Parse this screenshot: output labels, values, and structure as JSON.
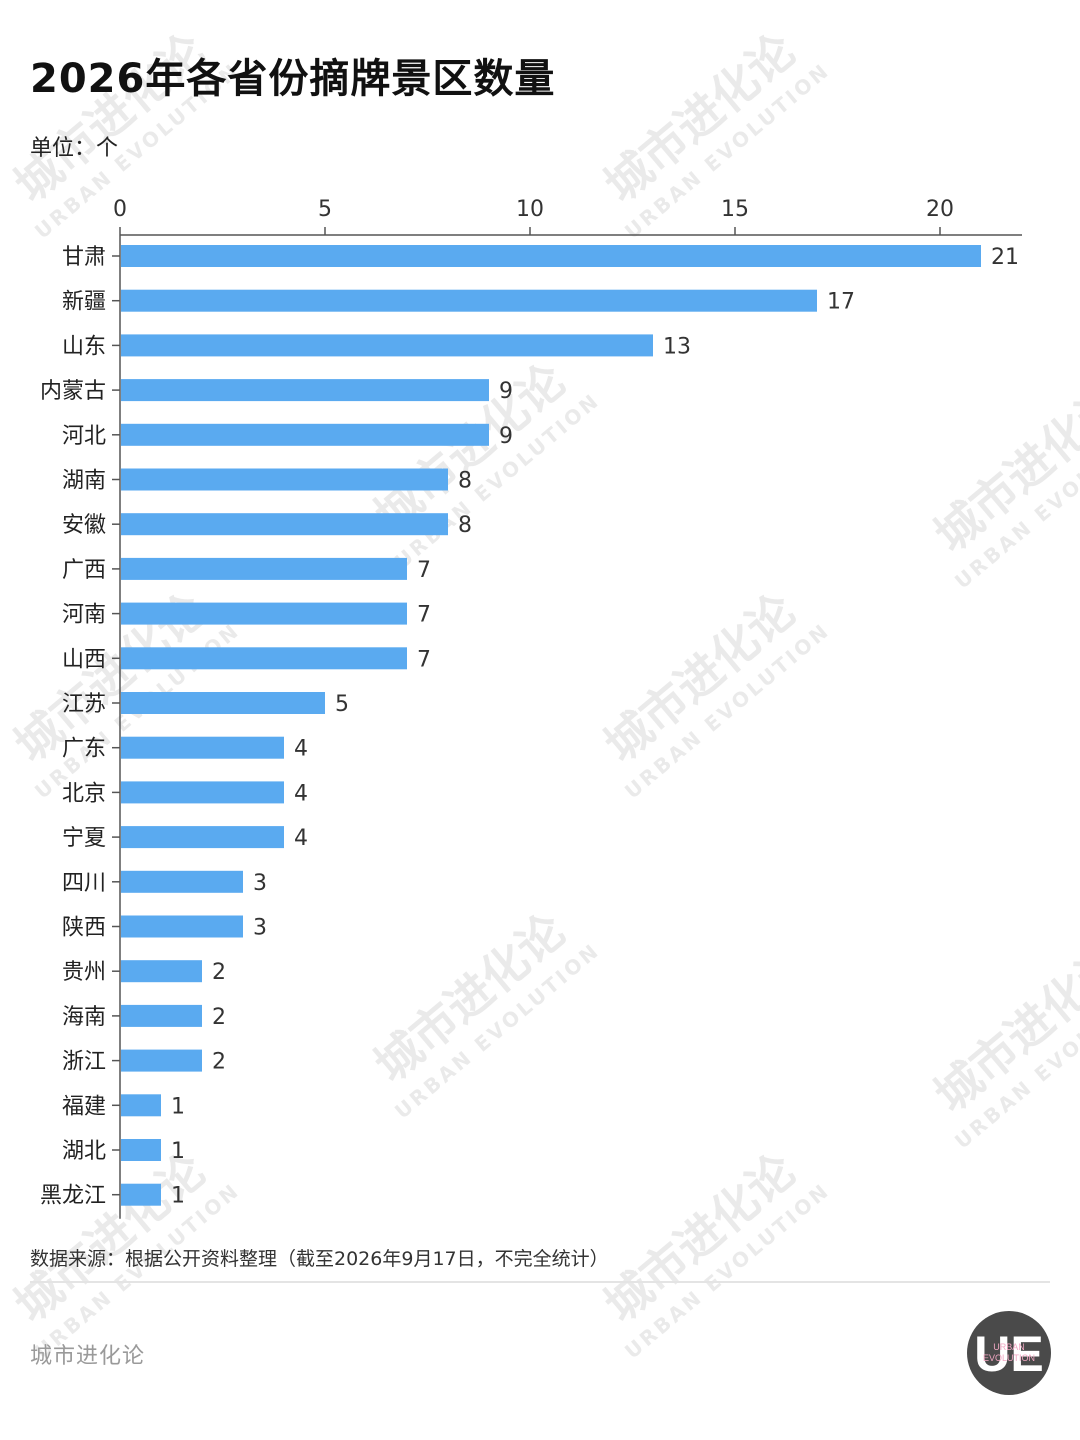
{
  "title": "2026年各省份摘牌景区数量",
  "unit_label": "单位：个",
  "source": "数据来源：根据公开资料整理（截至2026年9月17日，不完全统计）",
  "brand": "城市进化论",
  "logo": {
    "mark": "UE",
    "text_line1": "URBAN",
    "text_line2": "EVOLUTION",
    "bg_color": "#4a4a4a",
    "text_color": "#f2a7c3"
  },
  "watermark": {
    "main": "城市进化论",
    "sub": "URBAN EVOLUTION"
  },
  "chart_data": {
    "type": "bar",
    "orientation": "horizontal",
    "categories": [
      "甘肃",
      "新疆",
      "山东",
      "内蒙古",
      "河北",
      "湖南",
      "安徽",
      "广西",
      "河南",
      "山西",
      "江苏",
      "广东",
      "北京",
      "宁夏",
      "四川",
      "陕西",
      "贵州",
      "海南",
      "浙江",
      "福建",
      "湖北",
      "黑龙江"
    ],
    "values": [
      21,
      17,
      13,
      9,
      9,
      8,
      8,
      7,
      7,
      7,
      5,
      4,
      4,
      4,
      3,
      3,
      2,
      2,
      2,
      1,
      1,
      1
    ],
    "xlim": [
      0,
      22
    ],
    "ticks": [
      0,
      5,
      10,
      15,
      20
    ],
    "axis_position": "top",
    "grid": false,
    "bar_color": "#5aaaf0",
    "data_labels": true
  }
}
